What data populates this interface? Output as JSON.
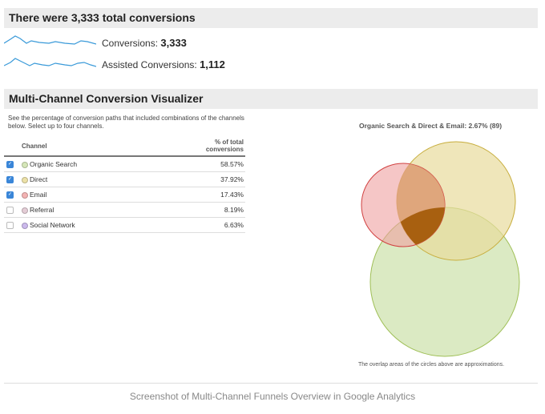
{
  "summary": {
    "title": "There were 3,333 total conversions",
    "metrics": [
      {
        "label": "Conversions: ",
        "value": "3,333"
      },
      {
        "label": "Assisted Conversions: ",
        "value": "1,112"
      }
    ]
  },
  "visualizer": {
    "title": "Multi-Channel Conversion Visualizer",
    "description": "See the percentage of conversion paths that included combinations of the channels below. Select up to four channels.",
    "columns": {
      "channel": "Channel",
      "percent": "% of total conversions"
    },
    "rows": [
      {
        "checked": true,
        "channel": "Organic Search",
        "percent": "58.57%",
        "color": "#d5e6b8"
      },
      {
        "checked": true,
        "channel": "Direct",
        "percent": "37.92%",
        "color": "#ece1a8"
      },
      {
        "checked": true,
        "channel": "Email",
        "percent": "17.43%",
        "color": "#f3b3b3"
      },
      {
        "checked": false,
        "channel": "Referral",
        "percent": "8.19%",
        "color": "#e4cdd6"
      },
      {
        "checked": false,
        "channel": "Social Network",
        "percent": "6.63%",
        "color": "#cbb9ec"
      }
    ],
    "venn_title": "Organic Search & Direct & Email: 2.67% (89)",
    "note": "The overlap areas of the circles above are approximations."
  },
  "caption": "Screenshot of Multi-Channel Funnels Overview in Google Analytics"
}
